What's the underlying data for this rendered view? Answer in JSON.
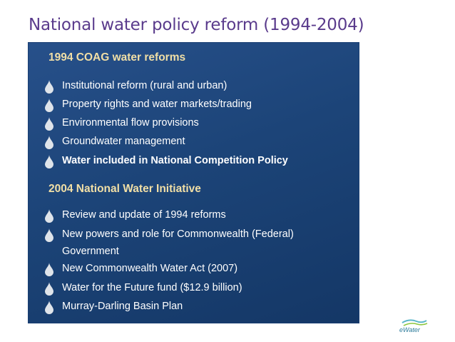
{
  "slide": {
    "title": "National water policy reform (1994-2004)"
  },
  "section1": {
    "heading": "1994 COAG water reforms",
    "items": [
      {
        "text": "Institutional reform (rural and urban)"
      },
      {
        "text": "Property rights and water markets/trading"
      },
      {
        "text": "Environmental flow provisions"
      },
      {
        "text": "Groundwater management"
      },
      {
        "text": "Water included in National Competition Policy"
      }
    ]
  },
  "section2": {
    "heading": "2004 National Water Initiative",
    "items": [
      {
        "text": "Review and update of 1994 reforms"
      },
      {
        "text": "New powers and role for Commonwealth (Federal)",
        "text2": "Government"
      },
      {
        "text": "New Commonwealth Water Act (2007)"
      },
      {
        "text": "Water for the Future fund ($12.9 billion)"
      },
      {
        "text": "Murray-Darling Basin Plan"
      }
    ]
  },
  "logo": {
    "text": "eWater"
  },
  "colors": {
    "title": "#5a3b8c",
    "panel": "#1c4478",
    "heading": "#f1dfa6",
    "bullet": "#dfe4ea"
  },
  "icons": {
    "bullet": "water-drop-icon"
  }
}
